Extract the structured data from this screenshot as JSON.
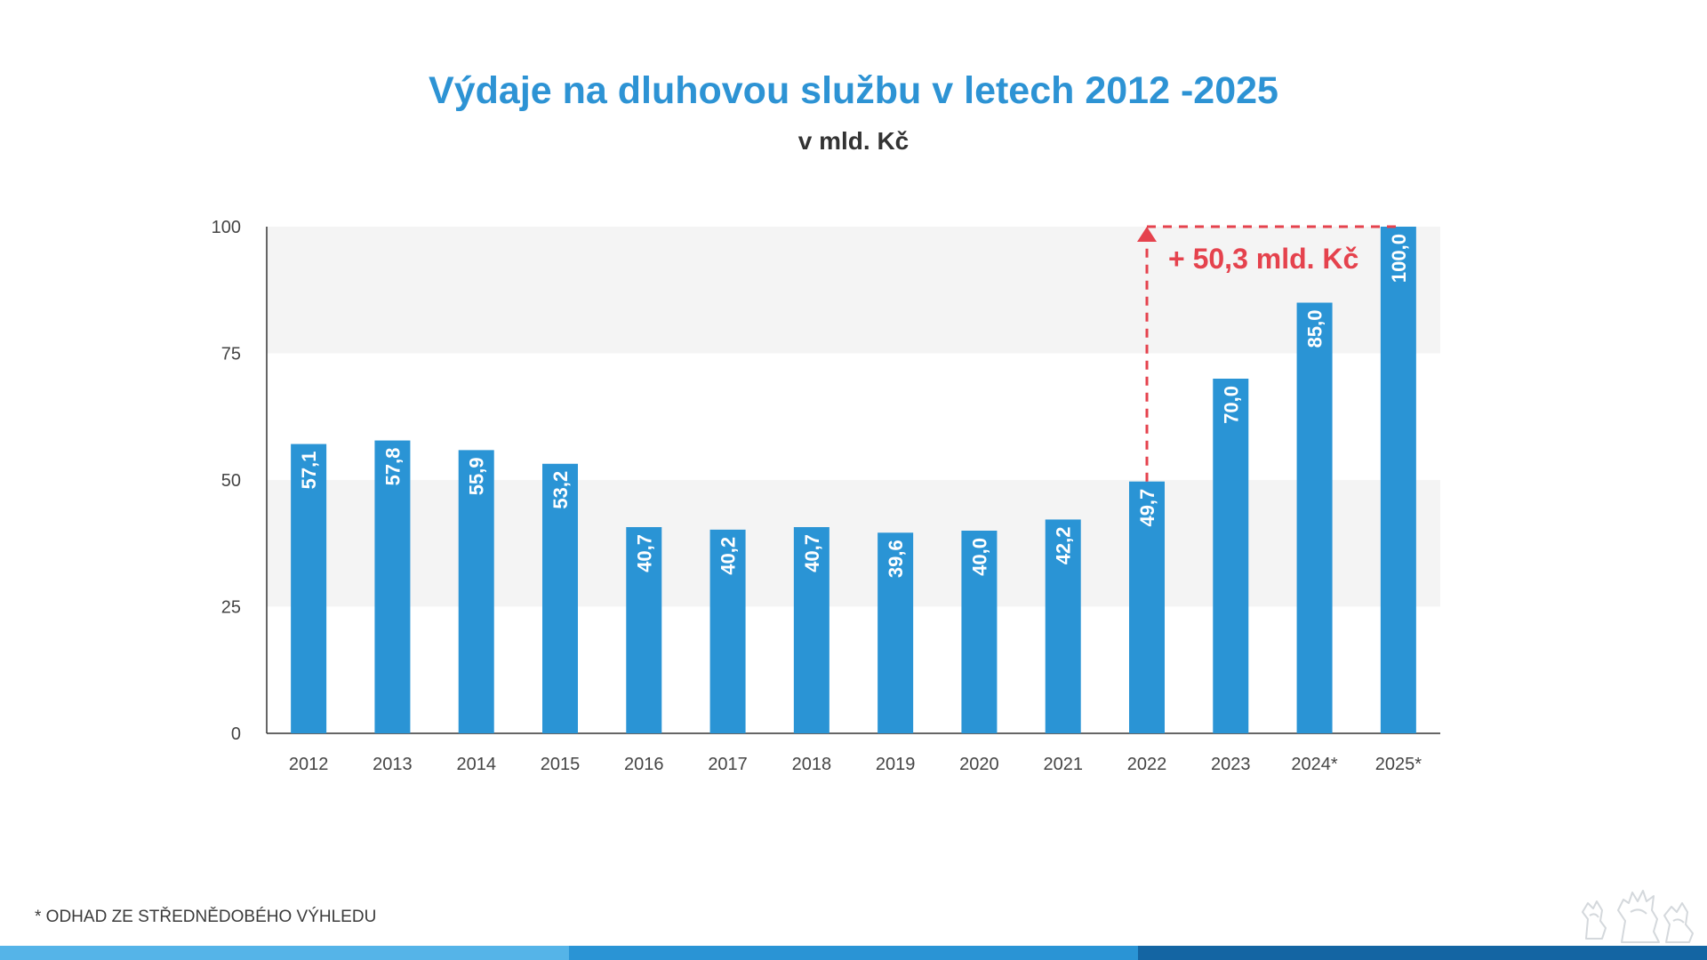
{
  "title": "Výdaje na dluhovou službu v letech 2012 -2025",
  "subtitle": "v mld. Kč",
  "footnote": "* ODHAD ZE STŘEDNĚDOBÉHO VÝHLEDU",
  "annotation": {
    "text": "+ 50,3 mld. Kč",
    "color": "#e5424d",
    "from_value": 49.7,
    "to_value": 100.0
  },
  "colors": {
    "bar": "#2a94d5",
    "title": "#2d93d4",
    "band": "#f4f4f4",
    "stripes": [
      "#55b4e8",
      "#2a94d5",
      "#1465a3"
    ]
  },
  "chart_data": {
    "type": "bar",
    "categories": [
      "2012",
      "2013",
      "2014",
      "2015",
      "2016",
      "2017",
      "2018",
      "2019",
      "2020",
      "2021",
      "2022",
      "2023",
      "2024*",
      "2025*"
    ],
    "values": [
      57.1,
      57.8,
      55.9,
      53.2,
      40.7,
      40.2,
      40.7,
      39.6,
      40.0,
      42.2,
      49.7,
      70.0,
      85.0,
      100.0
    ],
    "value_labels": [
      "57,1",
      "57,8",
      "55,9",
      "53,2",
      "40,7",
      "40,2",
      "40,7",
      "39,6",
      "40,0",
      "42,2",
      "49,7",
      "70,0",
      "85,0",
      "100,0"
    ],
    "yticks": [
      "0",
      "25",
      "50",
      "75",
      "100"
    ],
    "ylim": [
      0,
      100
    ],
    "grid": "alternating horizontal bands",
    "legend": "none",
    "xlabel": "",
    "ylabel": ""
  }
}
